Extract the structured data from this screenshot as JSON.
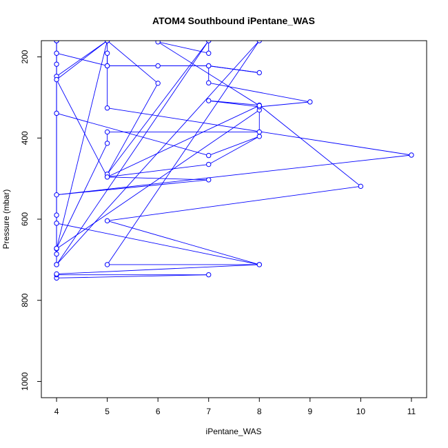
{
  "chart_data": {
    "type": "scatter",
    "title": "ATOM4 Southbound iPentane_WAS",
    "xlabel": "iPentane_WAS",
    "ylabel": "Pressure (mbar)",
    "xlim": [
      3.7,
      11.3
    ],
    "ylim": [
      1040,
      160
    ],
    "y_axis": "reversed",
    "x_ticks": [
      4,
      5,
      6,
      7,
      8,
      9,
      10,
      11
    ],
    "y_ticks": [
      200,
      400,
      600,
      800,
      1000
    ],
    "grid": false,
    "legend": "none",
    "series_color": "#0000ff",
    "series": [
      {
        "name": "",
        "points": [
          {
            "x": 4,
            "y": 745
          },
          {
            "x": 7,
            "y": 737
          },
          {
            "x": 4,
            "y": 737
          },
          {
            "x": 4,
            "y": 735
          },
          {
            "x": 8,
            "y": 712
          },
          {
            "x": 5,
            "y": 712
          },
          {
            "x": 8,
            "y": 160
          },
          {
            "x": 4,
            "y": 712
          },
          {
            "x": 4,
            "y": 686
          },
          {
            "x": 4,
            "y": 672
          },
          {
            "x": 5,
            "y": 413
          },
          {
            "x": 5,
            "y": 385
          },
          {
            "x": 8,
            "y": 385
          },
          {
            "x": 8,
            "y": 331
          },
          {
            "x": 4,
            "y": 673
          },
          {
            "x": 5,
            "y": 160
          },
          {
            "x": 4,
            "y": 160
          },
          {
            "x": 4,
            "y": 610
          },
          {
            "x": 8,
            "y": 712
          },
          {
            "x": 5,
            "y": 604
          },
          {
            "x": 10,
            "y": 519
          },
          {
            "x": 8,
            "y": 319
          },
          {
            "x": 7,
            "y": 308
          },
          {
            "x": 8,
            "y": 323
          },
          {
            "x": 9,
            "y": 311
          },
          {
            "x": 7,
            "y": 264
          },
          {
            "x": 7,
            "y": 222
          },
          {
            "x": 8,
            "y": 239
          },
          {
            "x": 7,
            "y": 222
          },
          {
            "x": 6,
            "y": 222
          },
          {
            "x": 5,
            "y": 222
          },
          {
            "x": 4,
            "y": 191
          },
          {
            "x": 4,
            "y": 218
          },
          {
            "x": 4,
            "y": 248
          },
          {
            "x": 5,
            "y": 160
          },
          {
            "x": 5,
            "y": 222
          },
          {
            "x": 5,
            "y": 191
          },
          {
            "x": 5,
            "y": 326
          },
          {
            "x": 11,
            "y": 442
          },
          {
            "x": 4,
            "y": 540
          },
          {
            "x": 7,
            "y": 503
          },
          {
            "x": 5,
            "y": 496
          },
          {
            "x": 7,
            "y": 465
          },
          {
            "x": 8,
            "y": 396
          },
          {
            "x": 7,
            "y": 443
          },
          {
            "x": 4,
            "y": 339
          },
          {
            "x": 4,
            "y": 160
          },
          {
            "x": 4,
            "y": 590
          },
          {
            "x": 4,
            "y": 672
          },
          {
            "x": 4,
            "y": 160
          },
          {
            "x": 4,
            "y": 712
          },
          {
            "x": 7,
            "y": 160
          },
          {
            "x": 5,
            "y": 489
          },
          {
            "x": 6,
            "y": 265
          },
          {
            "x": 5,
            "y": 160
          },
          {
            "x": 4,
            "y": 256
          },
          {
            "x": 5,
            "y": 496
          },
          {
            "x": 8,
            "y": 320
          },
          {
            "x": 6,
            "y": 163
          },
          {
            "x": 7,
            "y": 191
          },
          {
            "x": 7,
            "y": 160
          }
        ]
      }
    ]
  }
}
